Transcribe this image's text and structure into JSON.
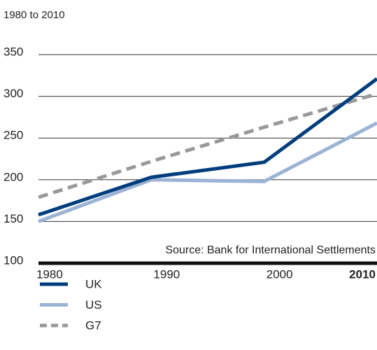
{
  "chart_data": {
    "type": "line",
    "subtitle": "1980 to 2010",
    "source": "Source: Bank for International Settlements",
    "x": [
      1980,
      1990,
      2000,
      2010
    ],
    "series": [
      {
        "name": "UK",
        "color": "#003d7c",
        "dashed": false,
        "values": [
          158,
          203,
          221,
          321
        ]
      },
      {
        "name": "US",
        "color": "#9bb3d4",
        "dashed": false,
        "values": [
          150,
          200,
          198,
          268
        ]
      },
      {
        "name": "G7",
        "color": "#999999",
        "dashed": true,
        "values": [
          179,
          222,
          263,
          303
        ]
      }
    ],
    "xlim": [
      1980,
      2010
    ],
    "ylim": [
      100,
      350
    ],
    "yticks": [
      100,
      150,
      200,
      250,
      300,
      350
    ],
    "grid": true
  }
}
